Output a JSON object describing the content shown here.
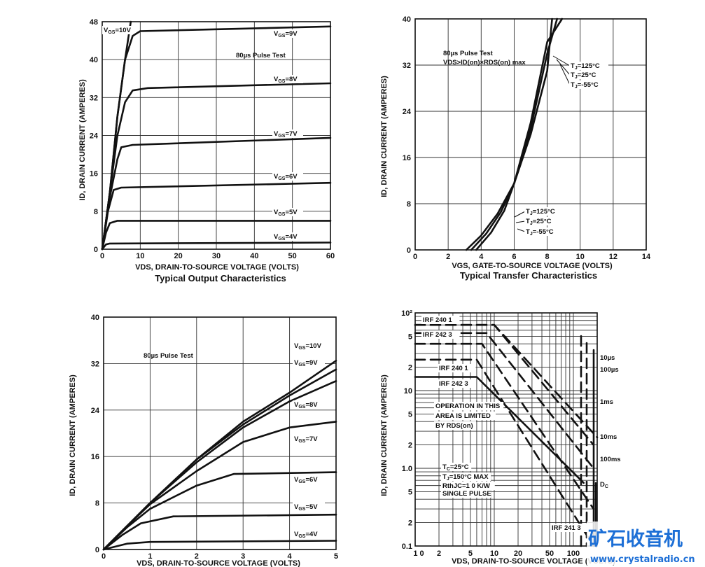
{
  "chart_data": [
    {
      "type": "line",
      "title": "Typical Output Characteristics",
      "xlabel": "VDS, DRAIN-TO-SOURCE VOLTAGE (VOLTS)",
      "ylabel": "ID, DRAIN CURRENT (AMPERES)",
      "xlim": [
        0,
        60
      ],
      "ylim": [
        0,
        48
      ],
      "xticks": [
        0,
        10,
        20,
        30,
        40,
        50,
        60
      ],
      "yticks": [
        0,
        8,
        16,
        24,
        32,
        40,
        48
      ],
      "grid": true,
      "annotation": "80µs Pulse Test",
      "series": [
        {
          "name": "VGS=10V",
          "points": [
            [
              0,
              0
            ],
            [
              2,
              12
            ],
            [
              4,
              28
            ],
            [
              6,
              40
            ],
            [
              7.5,
              48
            ]
          ]
        },
        {
          "name": "VGS=9V",
          "points": [
            [
              0,
              0
            ],
            [
              2,
              12
            ],
            [
              4,
              28
            ],
            [
              6,
              40
            ],
            [
              8,
              45
            ],
            [
              10,
              46
            ],
            [
              60,
              47
            ]
          ]
        },
        {
          "name": "VGS=8V",
          "points": [
            [
              0,
              0
            ],
            [
              2,
              12
            ],
            [
              4,
              24
            ],
            [
              6,
              31
            ],
            [
              8,
              33.5
            ],
            [
              12,
              34
            ],
            [
              60,
              35
            ]
          ]
        },
        {
          "name": "VGS=7V",
          "points": [
            [
              0,
              0
            ],
            [
              2,
              11
            ],
            [
              4,
              19
            ],
            [
              5,
              21.5
            ],
            [
              8,
              22
            ],
            [
              60,
              23.5
            ]
          ]
        },
        {
          "name": "VGS=6V",
          "points": [
            [
              0,
              0
            ],
            [
              1.5,
              8
            ],
            [
              3,
              12.5
            ],
            [
              5,
              13
            ],
            [
              60,
              14
            ]
          ]
        },
        {
          "name": "VGS=5V",
          "points": [
            [
              0,
              0
            ],
            [
              1,
              3.5
            ],
            [
              2,
              5.5
            ],
            [
              4,
              6
            ],
            [
              60,
              6
            ]
          ]
        },
        {
          "name": "VGS=4V",
          "points": [
            [
              0,
              0
            ],
            [
              1,
              1
            ],
            [
              2,
              1.2
            ],
            [
              60,
              1.4
            ]
          ]
        }
      ]
    },
    {
      "type": "line",
      "title": "Typical Transfer Characteristics",
      "xlabel": "VGS, GATE-TO-SOURCE VOLTAGE (VOLTS)",
      "ylabel": "ID, DRAIN CURRENT (AMPERES)",
      "xlim": [
        0,
        14
      ],
      "ylim": [
        0,
        40
      ],
      "xticks": [
        0,
        2,
        4,
        6,
        8,
        10,
        12,
        14
      ],
      "yticks": [
        0,
        8,
        16,
        24,
        32,
        40
      ],
      "grid": true,
      "annotation": [
        "80µs Pulse Test",
        "VDS>ID(on)×RDS(on) max"
      ],
      "series": [
        {
          "name": "TJ=125°C",
          "points": [
            [
              3.1,
              0
            ],
            [
              4,
              2.5
            ],
            [
              5,
              6.3
            ],
            [
              6,
              11.5
            ],
            [
              7,
              20
            ],
            [
              8,
              31
            ],
            [
              8.3,
              40
            ]
          ]
        },
        {
          "name": "TJ=25°C",
          "points": [
            [
              3.4,
              0
            ],
            [
              4.3,
              2.8
            ],
            [
              5.2,
              6.6
            ],
            [
              6,
              11.5
            ],
            [
              7,
              21
            ],
            [
              8,
              34
            ],
            [
              8.6,
              40
            ]
          ]
        },
        {
          "name": "TJ=-55°C",
          "points": [
            [
              3.7,
              0
            ],
            [
              4.6,
              3
            ],
            [
              5.4,
              6.8
            ],
            [
              6,
              11.5
            ],
            [
              7,
              22
            ],
            [
              8,
              36
            ],
            [
              8.9,
              40
            ]
          ]
        }
      ],
      "labels": [
        "TJ=125°C",
        "TJ=25°C",
        "TJ=-55°C",
        "TJ=125°C",
        "TJ=25°C",
        "TJ=-55°C"
      ]
    },
    {
      "type": "line",
      "title": "",
      "xlabel": "VDS, DRAIN-TO-SOURCE VOLTAGE (VOLTS)",
      "ylabel": "ID, DRAIN CURRENT (AMPERES)",
      "xlim": [
        0,
        5
      ],
      "ylim": [
        0,
        40
      ],
      "xticks": [
        0,
        1,
        2,
        3,
        4,
        5
      ],
      "yticks": [
        0,
        8,
        16,
        24,
        32,
        40
      ],
      "ytick_labels": [
        "0",
        "8",
        "16",
        "24",
        "32",
        "40"
      ],
      "grid": true,
      "annotation": "80µs Pulse Test",
      "series": [
        {
          "name": "VGS=10V",
          "points": [
            [
              0,
              0
            ],
            [
              0.5,
              4
            ],
            [
              1,
              8
            ],
            [
              2,
              15.5
            ],
            [
              3,
              22
            ],
            [
              4,
              27
            ],
            [
              5,
              32.5
            ]
          ]
        },
        {
          "name": "VGS=9V",
          "points": [
            [
              0,
              0
            ],
            [
              0.5,
              4
            ],
            [
              1,
              8
            ],
            [
              2,
              15.5
            ],
            [
              3,
              21.5
            ],
            [
              4,
              26.5
            ],
            [
              5,
              31
            ]
          ]
        },
        {
          "name": "VGS=8V",
          "points": [
            [
              0,
              0
            ],
            [
              0.5,
              4
            ],
            [
              1,
              8
            ],
            [
              2,
              15
            ],
            [
              3,
              21
            ],
            [
              4,
              25.5
            ],
            [
              5,
              29
            ]
          ]
        },
        {
          "name": "VGS=7V",
          "points": [
            [
              0,
              0
            ],
            [
              0.5,
              4
            ],
            [
              1,
              7.8
            ],
            [
              2,
              13.5
            ],
            [
              3,
              18.5
            ],
            [
              4,
              21
            ],
            [
              5,
              22
            ]
          ]
        },
        {
          "name": "VGS=6V",
          "points": [
            [
              0,
              0
            ],
            [
              0.5,
              3.8
            ],
            [
              1,
              7
            ],
            [
              2,
              11
            ],
            [
              2.8,
              13
            ],
            [
              5,
              13.3
            ]
          ]
        },
        {
          "name": "VGS=5V",
          "points": [
            [
              0,
              0
            ],
            [
              0.4,
              2.5
            ],
            [
              0.8,
              4.5
            ],
            [
              1.5,
              5.7
            ],
            [
              5,
              6
            ]
          ]
        },
        {
          "name": "VGS=4V",
          "points": [
            [
              0,
              0
            ],
            [
              0.5,
              1
            ],
            [
              1,
              1.3
            ],
            [
              5,
              1.5
            ]
          ]
        }
      ]
    },
    {
      "type": "line",
      "title": "",
      "xlabel": "VDS, DRAIN-TO-SOURCE VOLTAGE (VOLTS)",
      "ylabel": "ID, DRAIN CURRENT (AMPERES)",
      "xscale": "log",
      "yscale": "log",
      "xlim": [
        1,
        200
      ],
      "ylim": [
        0.1,
        100
      ],
      "xtick_labels": [
        "1 0",
        "2",
        "5",
        "10",
        "20",
        "50",
        "100"
      ],
      "ytick_labels": [
        "10²",
        "5",
        "2",
        "10",
        "5",
        "2",
        "1.0",
        "5",
        "2",
        "0.1"
      ],
      "grid": true,
      "series": [
        {
          "name": "10µs",
          "dashed": true,
          "points": [
            [
              1,
              70
            ],
            [
              10,
              70
            ],
            [
              200,
              2.5
            ]
          ]
        },
        {
          "name": "100µs",
          "dashed": true,
          "points": [
            [
              1,
              70
            ],
            [
              10,
              70
            ],
            [
              180,
              2
            ]
          ]
        },
        {
          "name": "1ms",
          "dashed": true,
          "points": [
            [
              1,
              55
            ],
            [
              8,
              55
            ],
            [
              180,
              1
            ]
          ]
        },
        {
          "name": "10ms",
          "dashed": true,
          "points": [
            [
              1,
              40
            ],
            [
              7,
              40
            ],
            [
              180,
              0.3
            ]
          ]
        },
        {
          "name": "100ms",
          "dashed": true,
          "points": [
            [
              1,
              25
            ],
            [
              6,
              25
            ],
            [
              180,
              0.1
            ]
          ]
        },
        {
          "name": "DC",
          "dashed": false,
          "points": [
            [
              1,
              15
            ],
            [
              6,
              15
            ],
            [
              135,
              0.65
            ]
          ]
        }
      ],
      "labels": [
        "IRF 240 1",
        "IRF 242 3",
        "IRF 240 1",
        "IRF 242 3",
        "OPERATION IN THIS",
        "AREA IS LIMITED",
        "BY RDS(on)",
        "TC=25°C",
        "TJ=150°C MAX",
        "RthJC=1 0 K/W",
        "SINGLE PULSE",
        "IRF 241 3",
        "10µs",
        "100µs",
        "1ms",
        "10ms",
        "100ms",
        "DC"
      ]
    }
  ],
  "watermark": {
    "text": "矿石收音机",
    "url": "www.crystalradio.cn"
  }
}
